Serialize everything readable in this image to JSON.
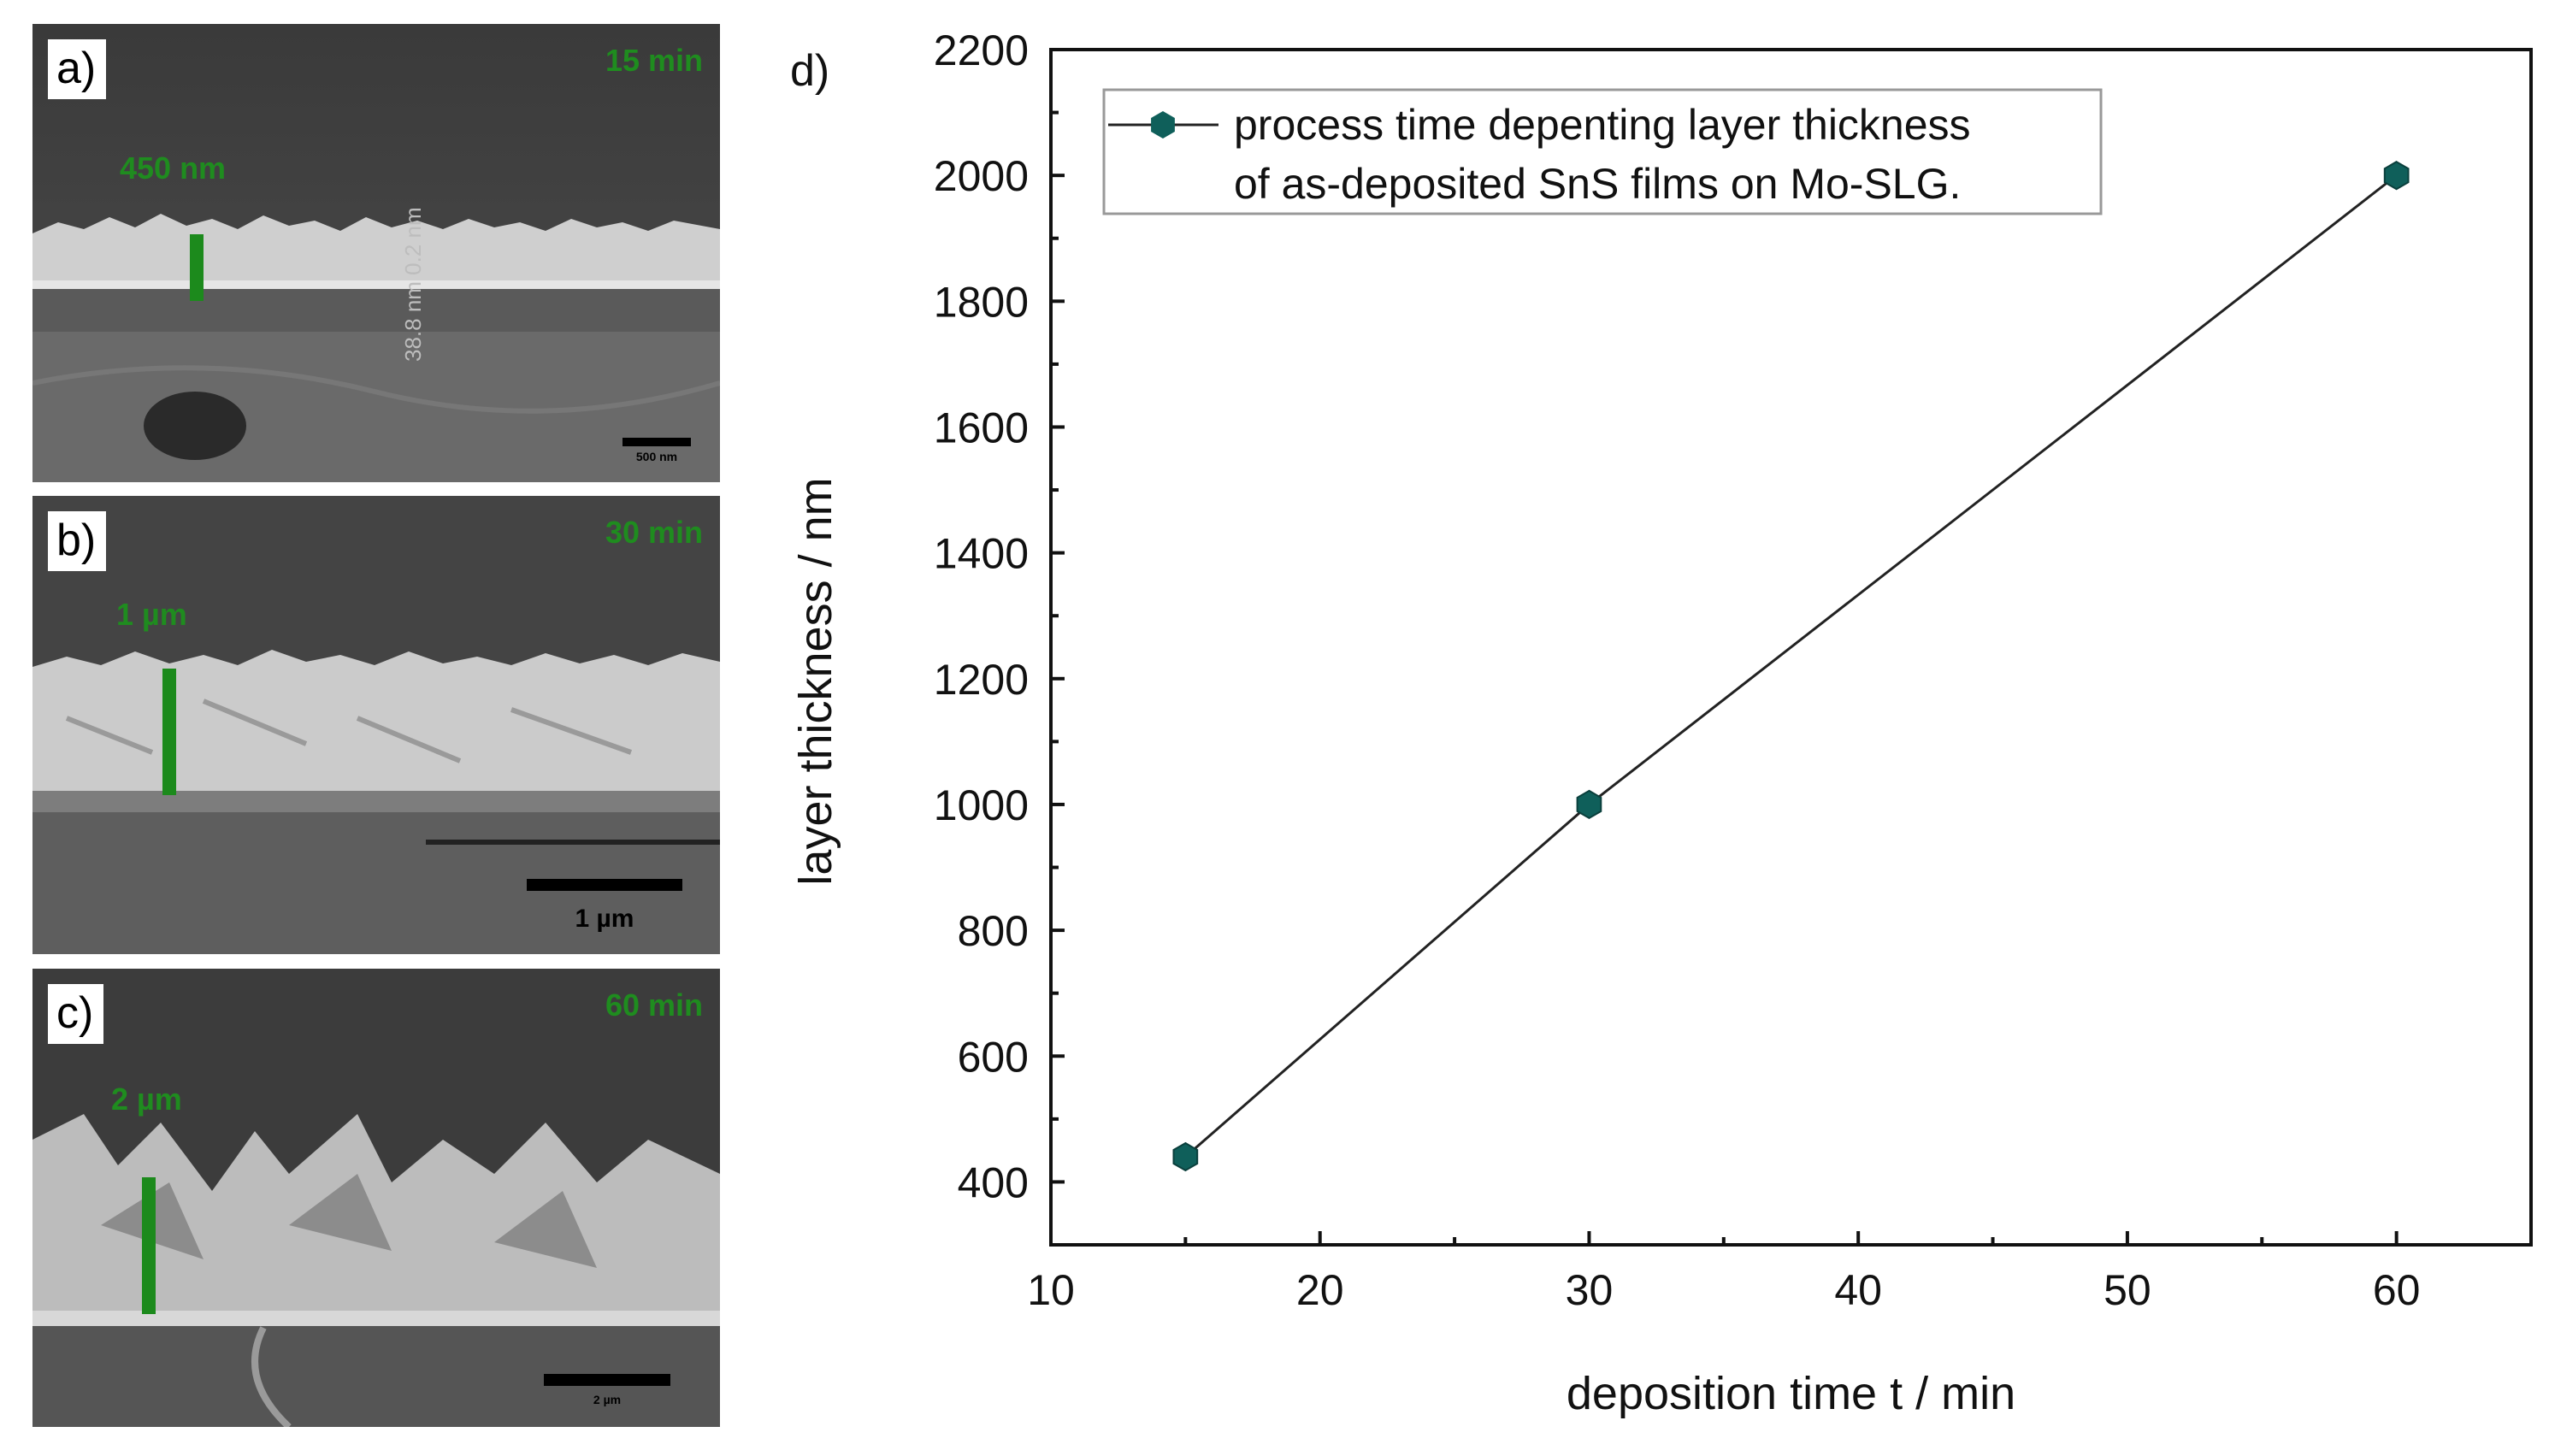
{
  "panels": [
    {
      "letter": "a)",
      "time": "15 min",
      "thickness": "450 nm",
      "scale": "500 nm",
      "overlay": "38.8 nm 0.2 nm"
    },
    {
      "letter": "b)",
      "time": "30 min",
      "thickness": "1 µm",
      "scale": "1 µm"
    },
    {
      "letter": "c)",
      "time": "60 min",
      "thickness": "2 µm",
      "scale": "2 µm"
    }
  ],
  "colors": {
    "marker": "#0f5f5a",
    "line": "#222222",
    "green_label": "#1f8c1f"
  },
  "chart_data": {
    "type": "line",
    "panel_label": "d)",
    "xlabel": "deposition time t / min",
    "ylabel": "layer thickness / nm",
    "xlim": [
      10,
      65
    ],
    "ylim": [
      300,
      2200
    ],
    "xticks": [
      10,
      20,
      30,
      40,
      50,
      60
    ],
    "yticks": [
      400,
      600,
      800,
      1000,
      1200,
      1400,
      1600,
      1800,
      2000,
      2200
    ],
    "legend": {
      "position": "top-left",
      "lines": [
        "process time depenting layer thickness",
        "of as-deposited SnS films on Mo-SLG."
      ]
    },
    "series": [
      {
        "name": "process time depenting layer thickness of as-deposited SnS films on Mo-SLG.",
        "marker": "hexagon",
        "x": [
          15,
          30,
          60
        ],
        "y": [
          440,
          1000,
          2000
        ]
      }
    ]
  }
}
